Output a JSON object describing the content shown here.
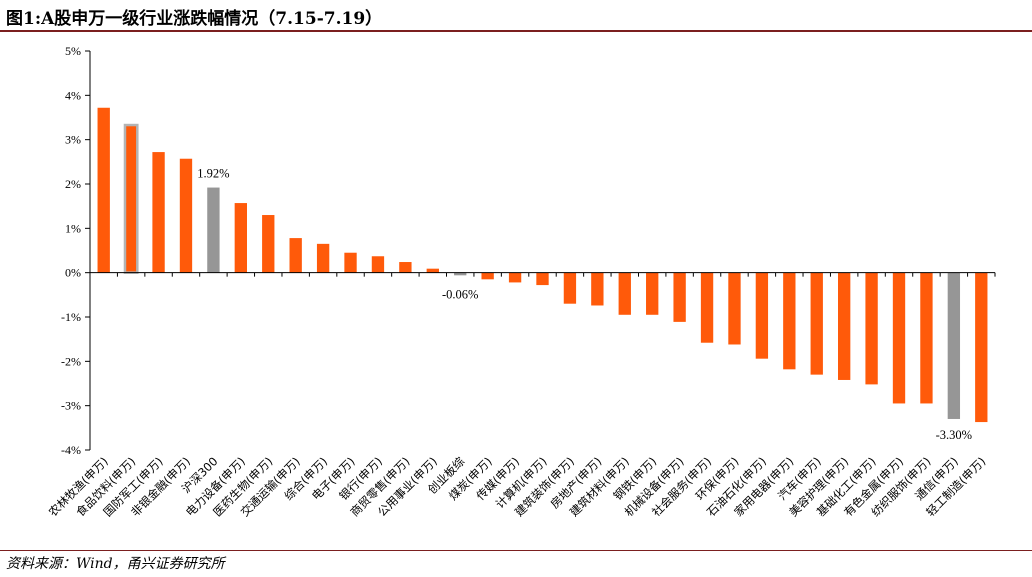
{
  "title": "图1:A股申万一级行业涨跌幅情况（7.15-7.19）",
  "source": "资料来源：Wind，甬兴证券研究所",
  "colors": {
    "industry": "#ff5a0a",
    "index": "#969696",
    "highlight_outline": "#b4b4b4",
    "axis": "#000000"
  },
  "chart_data": {
    "type": "bar",
    "title": "",
    "xlabel": "",
    "ylabel": "",
    "ylim": [
      -4,
      5
    ],
    "yticks": [
      -4,
      -3,
      -2,
      -1,
      0,
      1,
      2,
      3,
      4,
      5
    ],
    "ytick_labels": [
      "-4%",
      "-3%",
      "-2%",
      "-1%",
      "0%",
      "1%",
      "2%",
      "3%",
      "4%",
      "5%"
    ],
    "grid": false,
    "legend": "none",
    "categories": [
      "农林牧渔(申万)",
      "食品饮料(申万)",
      "国防军工(申万)",
      "非银金融(申万)",
      "沪深300",
      "电力设备(申万)",
      "医药生物(申万)",
      "交通运输(申万)",
      "综合(申万)",
      "电子(申万)",
      "银行(申万)",
      "商贸零售(申万)",
      "公用事业(申万)",
      "创业板综",
      "煤炭(申万)",
      "传媒(申万)",
      "计算机(申万)",
      "建筑装饰(申万)",
      "房地产(申万)",
      "建筑材料(申万)",
      "钢铁(申万)",
      "机械设备(申万)",
      "社会服务(申万)",
      "环保(申万)",
      "石油石化(申万)",
      "家用电器(申万)",
      "汽车(申万)",
      "美容护理(申万)",
      "基础化工(申万)",
      "有色金属(申万)",
      "纺织服饰(申万)",
      "通信(申万)",
      "轻工制造(申万)"
    ],
    "values": [
      3.72,
      3.33,
      2.72,
      2.57,
      1.92,
      1.57,
      1.3,
      0.78,
      0.65,
      0.45,
      0.37,
      0.24,
      0.09,
      -0.06,
      -0.15,
      -0.22,
      -0.28,
      -0.7,
      -0.74,
      -0.95,
      -0.95,
      -1.11,
      -1.58,
      -1.62,
      -1.94,
      -2.18,
      -2.3,
      -2.42,
      -2.52,
      -2.95,
      -2.95,
      -3.3,
      -3.37
    ],
    "kinds": [
      "industry",
      "highlight",
      "industry",
      "industry",
      "index",
      "industry",
      "industry",
      "industry",
      "industry",
      "industry",
      "industry",
      "industry",
      "industry",
      "index",
      "industry",
      "industry",
      "industry",
      "industry",
      "industry",
      "industry",
      "industry",
      "industry",
      "industry",
      "industry",
      "industry",
      "industry",
      "industry",
      "industry",
      "industry",
      "industry",
      "industry",
      "index",
      "industry"
    ],
    "data_labels": [
      {
        "index": 4,
        "text": "1.92%"
      },
      {
        "index": 13,
        "text": "-0.06%"
      },
      {
        "index": 31,
        "text": "-3.30%"
      }
    ]
  }
}
